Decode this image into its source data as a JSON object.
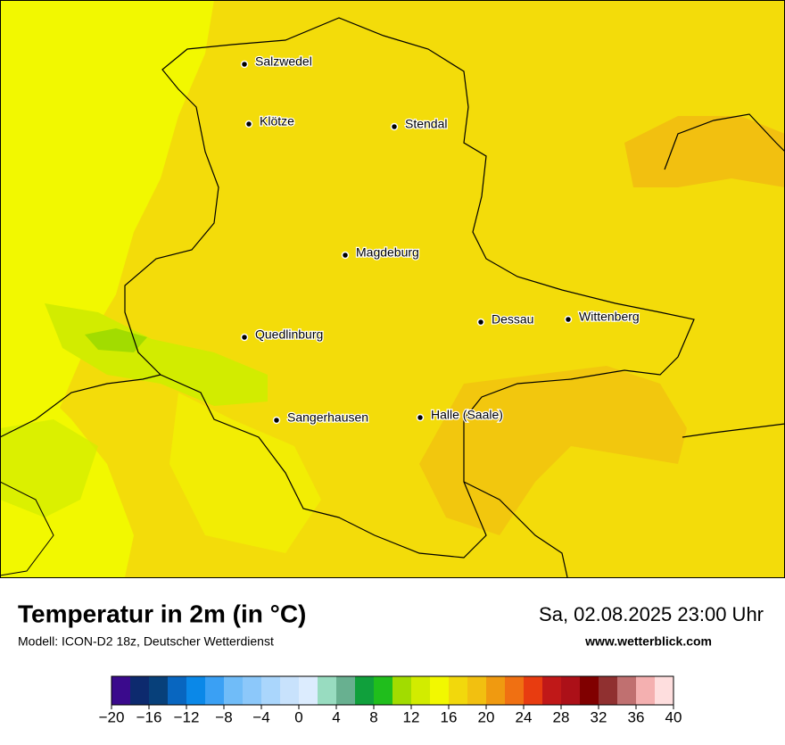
{
  "header": {
    "title": "Temperatur in 2m (in °C)",
    "subtitle": "Modell: ICON-D2 18z, Deutscher Wetterdienst",
    "datetime": "Sa, 02.08.2025 23:00 Uhr",
    "website": "www.wetterblick.com"
  },
  "cities": [
    {
      "name": "Salzwedel"
    },
    {
      "name": "Klötze"
    },
    {
      "name": "Stendal"
    },
    {
      "name": "Magdeburg"
    },
    {
      "name": "Dessau"
    },
    {
      "name": "Wittenberg"
    },
    {
      "name": "Quedlinburg"
    },
    {
      "name": "Sangerhausen"
    },
    {
      "name": "Halle (Saale)"
    }
  ],
  "colorbar": {
    "lim": [
      -20,
      40
    ],
    "ticks": [
      {
        "value": -20,
        "label": "−20"
      },
      {
        "value": -16,
        "label": "−16"
      },
      {
        "value": -12,
        "label": "−12"
      },
      {
        "value": -8,
        "label": "−8"
      },
      {
        "value": -4,
        "label": "−4"
      },
      0,
      4,
      8,
      12,
      16,
      20,
      24,
      28,
      32,
      36,
      40
    ],
    "colors": [
      "#3a0a8c",
      "#0d2a6e",
      "#07407a",
      "#0866c0",
      "#0a88e8",
      "#3aa0f4",
      "#70bcf8",
      "#8cc8fa",
      "#aad6fc",
      "#c8e2fc",
      "#dcecfe",
      "#98dcc0",
      "#68b090",
      "#10a03c",
      "#20be1c",
      "#a2dc00",
      "#d2ec00",
      "#f2f800",
      "#f2d80c",
      "#f2c010",
      "#f09a10",
      "#f07012",
      "#e83c10",
      "#c01818",
      "#ac1018",
      "#800000",
      "#903030",
      "#c07070",
      "#f4b0b0",
      "#fedede"
    ]
  }
}
